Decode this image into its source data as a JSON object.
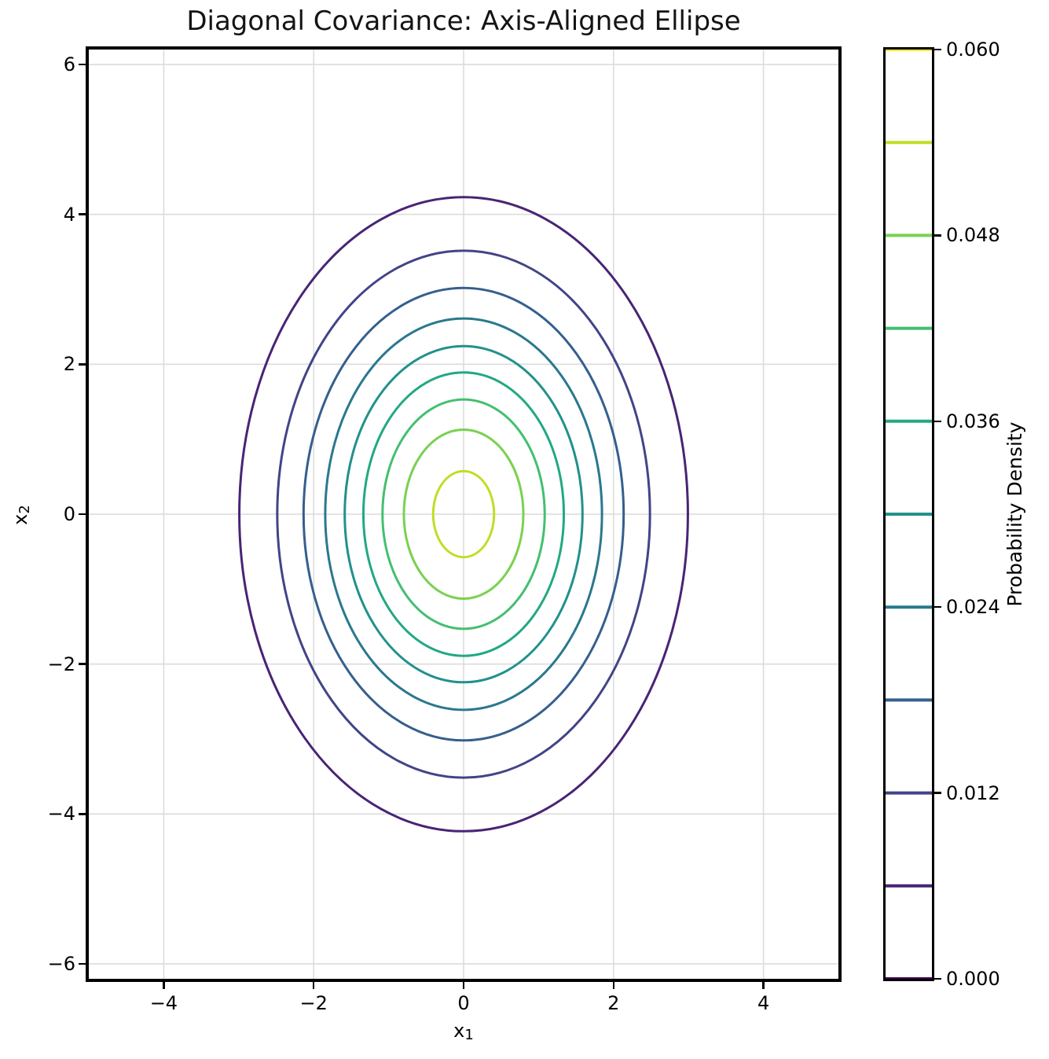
{
  "title": "Diagonal Covariance: Axis-Aligned Ellipse",
  "chart_data": {
    "type": "contour",
    "title": "Diagonal Covariance: Axis-Aligned Ellipse",
    "xlabel": "x₁",
    "ylabel": "x₂",
    "xlabel_parts": {
      "base": "x",
      "sub": "1"
    },
    "ylabel_parts": {
      "base": "x",
      "sub": "2"
    },
    "xlim": [
      -5,
      5
    ],
    "ylim": [
      -6.2,
      6.2
    ],
    "grid": true,
    "grid_color": "#dcdcdc",
    "background_color": "#ffffff",
    "xticks": [
      {
        "value": -4,
        "label": "−4"
      },
      {
        "value": -2,
        "label": "−2"
      },
      {
        "value": 0,
        "label": "0"
      },
      {
        "value": 2,
        "label": "2"
      },
      {
        "value": 4,
        "label": "4"
      }
    ],
    "yticks": [
      {
        "value": 6,
        "label": "6"
      },
      {
        "value": 4,
        "label": "4"
      },
      {
        "value": 2,
        "label": "2"
      },
      {
        "value": 0,
        "label": "0"
      },
      {
        "value": -2,
        "label": "−2"
      },
      {
        "value": -4,
        "label": "−4"
      },
      {
        "value": -6,
        "label": "−6"
      }
    ],
    "distribution": {
      "kind": "bivariate-gaussian",
      "mean": [
        0,
        0
      ],
      "cov": [
        [
          2,
          0
        ],
        [
          0,
          4
        ]
      ]
    },
    "contours": [
      {
        "level": 0.006,
        "color": "#482475",
        "semi_axis_x": 2.992,
        "semi_axis_y": 4.231
      },
      {
        "level": 0.012,
        "color": "#414487",
        "semi_axis_x": 2.486,
        "semi_axis_y": 3.516
      },
      {
        "level": 0.018,
        "color": "#355f8d",
        "semi_axis_x": 2.135,
        "semi_axis_y": 3.019
      },
      {
        "level": 0.024,
        "color": "#2a788e",
        "semi_axis_x": 1.846,
        "semi_axis_y": 2.611
      },
      {
        "level": 0.03,
        "color": "#21918c",
        "semi_axis_x": 1.586,
        "semi_axis_y": 2.243
      },
      {
        "level": 0.036,
        "color": "#22a884",
        "semi_axis_x": 1.337,
        "semi_axis_y": 1.891
      },
      {
        "level": 0.042,
        "color": "#44bf70",
        "semi_axis_x": 1.082,
        "semi_axis_y": 1.53
      },
      {
        "level": 0.048,
        "color": "#7ad151",
        "semi_axis_x": 0.797,
        "semi_axis_y": 1.128
      },
      {
        "level": 0.054,
        "color": "#bddf26",
        "semi_axis_x": 0.406,
        "semi_axis_y": 0.574
      }
    ],
    "colorbar": {
      "label": "Probability Density",
      "range": [
        0.0,
        0.06
      ],
      "tick_labels": [
        {
          "value": 0.06,
          "label": "0.060"
        },
        {
          "value": 0.048,
          "label": "0.048"
        },
        {
          "value": 0.036,
          "label": "0.036"
        },
        {
          "value": 0.024,
          "label": "0.024"
        },
        {
          "value": 0.012,
          "label": "0.012"
        },
        {
          "value": 0.0,
          "label": "0.000"
        }
      ],
      "level_lines": [
        {
          "level": 0.0,
          "color": "#440154"
        },
        {
          "level": 0.006,
          "color": "#482475"
        },
        {
          "level": 0.012,
          "color": "#414487"
        },
        {
          "level": 0.018,
          "color": "#355f8d"
        },
        {
          "level": 0.024,
          "color": "#2a788e"
        },
        {
          "level": 0.03,
          "color": "#21918c"
        },
        {
          "level": 0.036,
          "color": "#22a884"
        },
        {
          "level": 0.042,
          "color": "#44bf70"
        },
        {
          "level": 0.048,
          "color": "#7ad151"
        },
        {
          "level": 0.054,
          "color": "#bddf26"
        },
        {
          "level": 0.06,
          "color": "#fde725"
        }
      ]
    }
  }
}
